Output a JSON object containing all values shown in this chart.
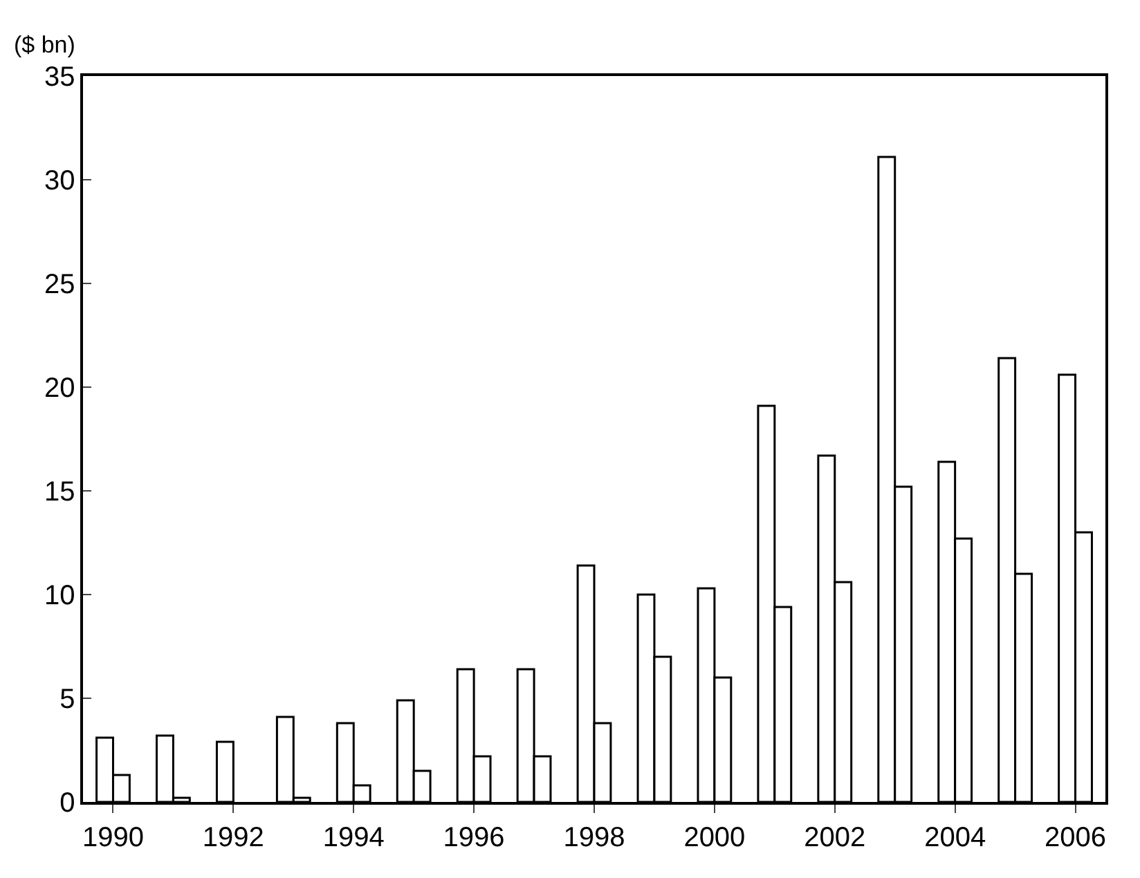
{
  "chart_data": {
    "type": "bar",
    "ylabel": "($ bn)",
    "categories": [
      "1990",
      null,
      "1992",
      null,
      "1994",
      null,
      "1996",
      null,
      "1998",
      null,
      "2000",
      null,
      "2002",
      null,
      "2004",
      null,
      "2006"
    ],
    "series": [
      {
        "color": "#ffffff",
        "values": [
          3.1,
          3.2,
          2.9,
          4.1,
          3.8,
          4.9,
          6.4,
          6.4,
          11.4,
          10.0,
          10.3,
          19.1,
          16.7,
          31.1,
          16.4,
          21.4,
          20.6
        ]
      },
      {
        "color": "#ffffff",
        "values": [
          1.3,
          0.2,
          null,
          0.2,
          0.8,
          1.5,
          2.2,
          2.2,
          3.8,
          7.0,
          6.0,
          9.4,
          10.6,
          15.2,
          12.7,
          11.0,
          13.0
        ]
      }
    ],
    "ylim": [
      0,
      35
    ],
    "yticks": [
      0,
      5,
      10,
      15,
      20,
      25,
      30,
      35
    ]
  }
}
